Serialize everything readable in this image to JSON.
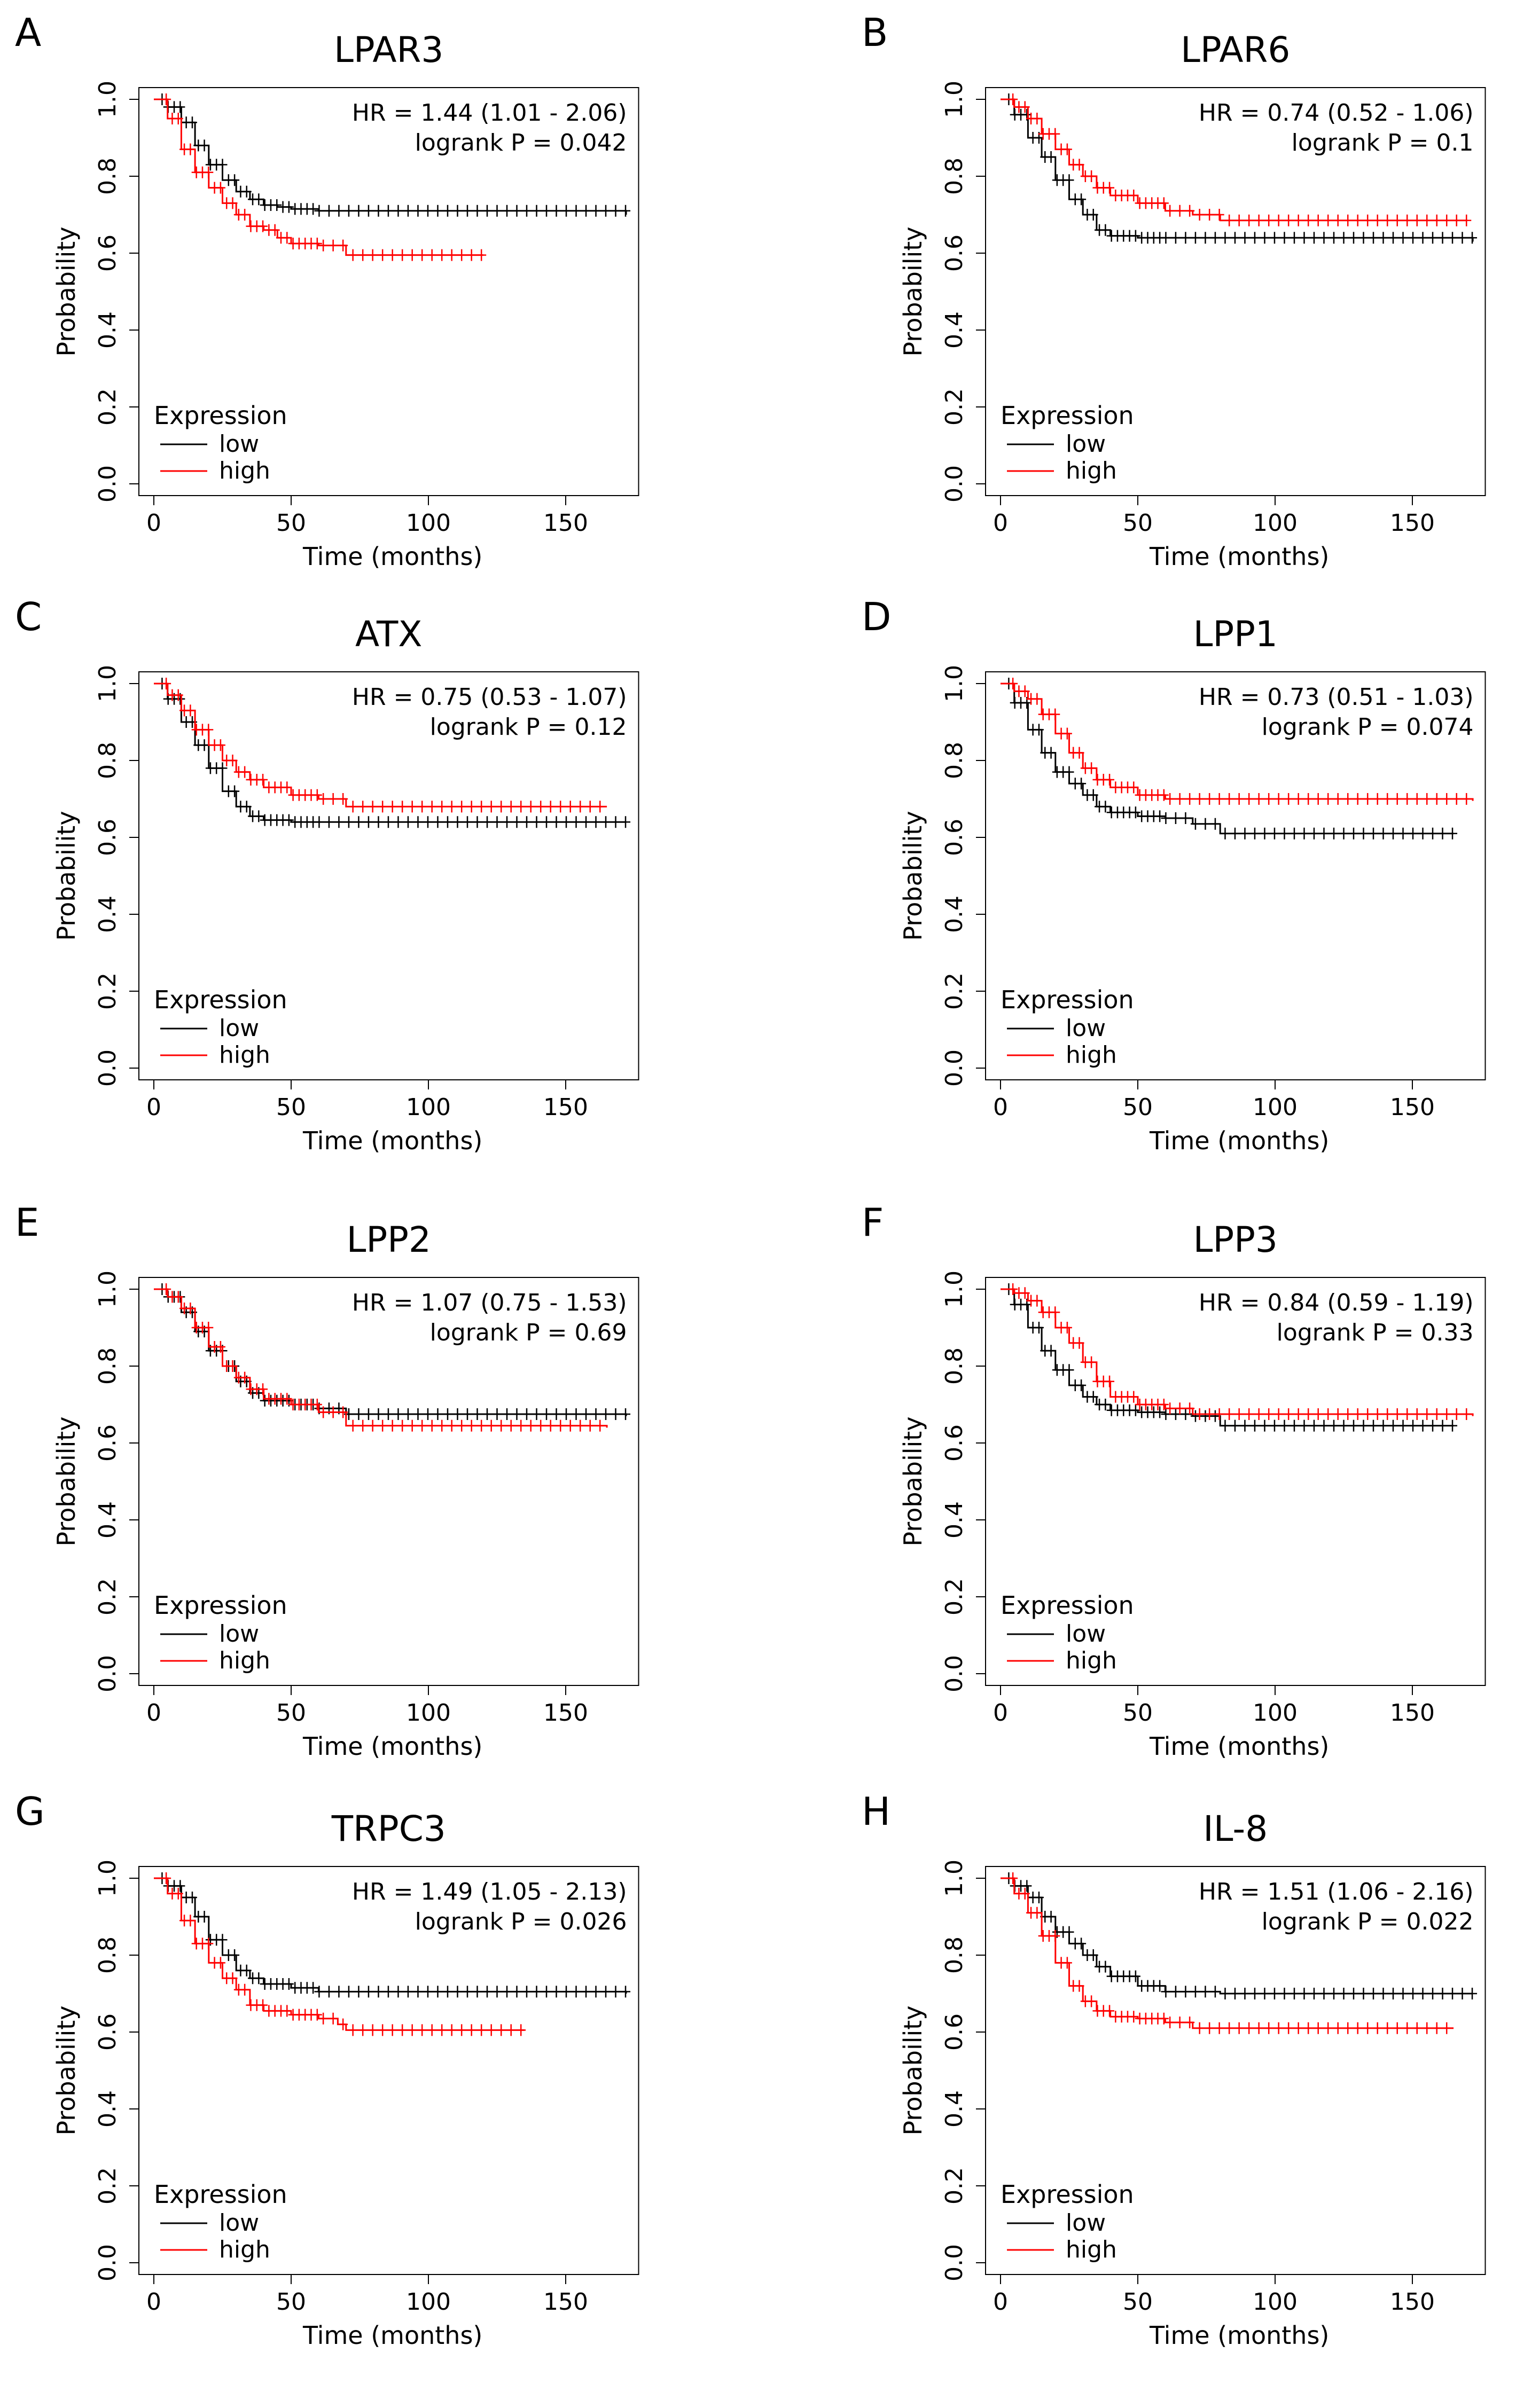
{
  "figure": {
    "colors": {
      "low": "#000000",
      "high": "#ff0000"
    }
  },
  "chart_data": [
    {
      "type": "line",
      "letter": "A",
      "title": "LPAR3",
      "xlabel": "Time (months)",
      "ylabel": "Probability",
      "xlim": [
        0,
        175
      ],
      "ylim": [
        0,
        1
      ],
      "xticks": [
        "0",
        "50",
        "100",
        "150"
      ],
      "yticks": [
        "0.0",
        "0.2",
        "0.4",
        "0.6",
        "0.8",
        "1.0"
      ],
      "hr_text": "HR = 1.44 (1.01 - 2.06)",
      "p_text": "logrank P = 0.042",
      "legend": {
        "title": "Expression",
        "position": "bottom-left",
        "items": [
          "low",
          "high"
        ]
      },
      "series": [
        {
          "name": "low",
          "color": "#000000",
          "x": [
            0,
            5,
            10,
            15,
            20,
            25,
            30,
            35,
            40,
            45,
            50,
            60,
            172
          ],
          "y": [
            1.0,
            0.98,
            0.94,
            0.88,
            0.83,
            0.79,
            0.76,
            0.74,
            0.725,
            0.72,
            0.715,
            0.71,
            0.7
          ]
        },
        {
          "name": "high",
          "color": "#ff0000",
          "x": [
            0,
            5,
            10,
            15,
            20,
            25,
            30,
            35,
            40,
            45,
            50,
            60,
            65,
            70,
            120
          ],
          "y": [
            1.0,
            0.95,
            0.87,
            0.81,
            0.77,
            0.73,
            0.7,
            0.67,
            0.66,
            0.64,
            0.625,
            0.62,
            0.62,
            0.595,
            0.595
          ]
        }
      ]
    },
    {
      "type": "line",
      "letter": "B",
      "title": "LPAR6",
      "xlabel": "Time (months)",
      "ylabel": "Probability",
      "xlim": [
        0,
        175
      ],
      "ylim": [
        0,
        1
      ],
      "xticks": [
        "0",
        "50",
        "100",
        "150"
      ],
      "yticks": [
        "0.0",
        "0.2",
        "0.4",
        "0.6",
        "0.8",
        "1.0"
      ],
      "hr_text": "HR = 0.74 (0.52 - 1.06)",
      "p_text": "logrank P = 0.1",
      "legend": {
        "title": "Expression",
        "position": "bottom-left",
        "items": [
          "low",
          "high"
        ]
      },
      "series": [
        {
          "name": "low",
          "color": "#000000",
          "x": [
            0,
            5,
            10,
            15,
            20,
            25,
            30,
            35,
            40,
            50,
            172
          ],
          "y": [
            1.0,
            0.96,
            0.9,
            0.85,
            0.79,
            0.74,
            0.7,
            0.66,
            0.645,
            0.64,
            0.63
          ]
        },
        {
          "name": "high",
          "color": "#ff0000",
          "x": [
            0,
            5,
            10,
            15,
            20,
            25,
            30,
            35,
            40,
            50,
            60,
            70,
            80,
            170
          ],
          "y": [
            1.0,
            0.98,
            0.95,
            0.91,
            0.87,
            0.83,
            0.8,
            0.77,
            0.75,
            0.73,
            0.71,
            0.7,
            0.685,
            0.685
          ]
        }
      ]
    },
    {
      "type": "line",
      "letter": "C",
      "title": "ATX",
      "xlabel": "Time (months)",
      "ylabel": "Probability",
      "xlim": [
        0,
        175
      ],
      "ylim": [
        0,
        1
      ],
      "xticks": [
        "0",
        "50",
        "100",
        "150"
      ],
      "yticks": [
        "0.0",
        "0.2",
        "0.4",
        "0.6",
        "0.8",
        "1.0"
      ],
      "hr_text": "HR = 0.75 (0.53 - 1.07)",
      "p_text": "logrank P = 0.12",
      "legend": {
        "title": "Expression",
        "position": "bottom-left",
        "items": [
          "low",
          "high"
        ]
      },
      "series": [
        {
          "name": "low",
          "color": "#000000",
          "x": [
            0,
            5,
            10,
            15,
            20,
            25,
            30,
            35,
            40,
            50,
            172
          ],
          "y": [
            1.0,
            0.96,
            0.9,
            0.84,
            0.78,
            0.72,
            0.68,
            0.655,
            0.645,
            0.64,
            0.64
          ]
        },
        {
          "name": "high",
          "color": "#ff0000",
          "x": [
            0,
            5,
            10,
            15,
            20,
            25,
            30,
            35,
            40,
            50,
            60,
            70,
            165
          ],
          "y": [
            1.0,
            0.97,
            0.93,
            0.88,
            0.84,
            0.8,
            0.77,
            0.75,
            0.73,
            0.71,
            0.7,
            0.68,
            0.68
          ]
        }
      ]
    },
    {
      "type": "line",
      "letter": "D",
      "title": "LPP1",
      "xlabel": "Time (months)",
      "ylabel": "Probability",
      "xlim": [
        0,
        175
      ],
      "ylim": [
        0,
        1
      ],
      "xticks": [
        "0",
        "50",
        "100",
        "150"
      ],
      "yticks": [
        "0.0",
        "0.2",
        "0.4",
        "0.6",
        "0.8",
        "1.0"
      ],
      "hr_text": "HR = 0.73 (0.51 - 1.03)",
      "p_text": "logrank P = 0.074",
      "legend": {
        "title": "Expression",
        "position": "bottom-left",
        "items": [
          "low",
          "high"
        ]
      },
      "series": [
        {
          "name": "low",
          "color": "#000000",
          "x": [
            0,
            5,
            10,
            15,
            20,
            25,
            30,
            35,
            40,
            50,
            60,
            70,
            80,
            165
          ],
          "y": [
            1.0,
            0.95,
            0.88,
            0.82,
            0.77,
            0.74,
            0.71,
            0.68,
            0.665,
            0.655,
            0.65,
            0.635,
            0.61,
            0.61
          ]
        },
        {
          "name": "high",
          "color": "#ff0000",
          "x": [
            0,
            5,
            10,
            15,
            20,
            25,
            30,
            35,
            40,
            50,
            60,
            172
          ],
          "y": [
            1.0,
            0.98,
            0.96,
            0.92,
            0.87,
            0.82,
            0.78,
            0.75,
            0.73,
            0.71,
            0.7,
            0.695
          ]
        }
      ]
    },
    {
      "type": "line",
      "letter": "E",
      "title": "LPP2",
      "xlabel": "Time (months)",
      "ylabel": "Probability",
      "xlim": [
        0,
        175
      ],
      "ylim": [
        0,
        1
      ],
      "xticks": [
        "0",
        "50",
        "100",
        "150"
      ],
      "yticks": [
        "0.0",
        "0.2",
        "0.4",
        "0.6",
        "0.8",
        "1.0"
      ],
      "hr_text": "HR = 1.07 (0.75 - 1.53)",
      "p_text": "logrank P = 0.69",
      "legend": {
        "title": "Expression",
        "position": "bottom-left",
        "items": [
          "low",
          "high"
        ]
      },
      "series": [
        {
          "name": "low",
          "color": "#000000",
          "x": [
            0,
            5,
            10,
            15,
            20,
            25,
            30,
            35,
            40,
            50,
            60,
            70,
            172
          ],
          "y": [
            1.0,
            0.98,
            0.94,
            0.89,
            0.84,
            0.8,
            0.76,
            0.73,
            0.71,
            0.7,
            0.69,
            0.675,
            0.67
          ]
        },
        {
          "name": "high",
          "color": "#ff0000",
          "x": [
            0,
            5,
            10,
            15,
            20,
            25,
            30,
            35,
            40,
            50,
            60,
            70,
            165
          ],
          "y": [
            1.0,
            0.98,
            0.95,
            0.9,
            0.85,
            0.8,
            0.77,
            0.74,
            0.715,
            0.7,
            0.68,
            0.645,
            0.64
          ]
        }
      ]
    },
    {
      "type": "line",
      "letter": "F",
      "title": "LPP3",
      "xlabel": "Time (months)",
      "ylabel": "Probability",
      "xlim": [
        0,
        175
      ],
      "ylim": [
        0,
        1
      ],
      "xticks": [
        "0",
        "50",
        "100",
        "150"
      ],
      "yticks": [
        "0.0",
        "0.2",
        "0.4",
        "0.6",
        "0.8",
        "1.0"
      ],
      "hr_text": "HR = 0.84 (0.59 - 1.19)",
      "p_text": "logrank P = 0.33",
      "legend": {
        "title": "Expression",
        "position": "bottom-left",
        "items": [
          "low",
          "high"
        ]
      },
      "series": [
        {
          "name": "low",
          "color": "#000000",
          "x": [
            0,
            5,
            10,
            15,
            20,
            25,
            30,
            35,
            40,
            50,
            60,
            70,
            80,
            165
          ],
          "y": [
            1.0,
            0.96,
            0.9,
            0.84,
            0.79,
            0.75,
            0.72,
            0.7,
            0.685,
            0.68,
            0.675,
            0.67,
            0.645,
            0.645
          ]
        },
        {
          "name": "high",
          "color": "#ff0000",
          "x": [
            0,
            5,
            10,
            15,
            20,
            25,
            30,
            35,
            40,
            50,
            60,
            70,
            172
          ],
          "y": [
            1.0,
            0.99,
            0.97,
            0.94,
            0.9,
            0.86,
            0.81,
            0.76,
            0.72,
            0.7,
            0.69,
            0.675,
            0.67
          ]
        }
      ]
    },
    {
      "type": "line",
      "letter": "G",
      "title": "TRPC3",
      "xlabel": "Time (months)",
      "ylabel": "Probability",
      "xlim": [
        0,
        175
      ],
      "ylim": [
        0,
        1
      ],
      "xticks": [
        "0",
        "50",
        "100",
        "150"
      ],
      "yticks": [
        "0.0",
        "0.2",
        "0.4",
        "0.6",
        "0.8",
        "1.0"
      ],
      "hr_text": "HR = 1.49 (1.05 - 2.13)",
      "p_text": "logrank P = 0.026",
      "legend": {
        "title": "Expression",
        "position": "bottom-left",
        "items": [
          "low",
          "high"
        ]
      },
      "series": [
        {
          "name": "low",
          "color": "#000000",
          "x": [
            0,
            5,
            10,
            15,
            20,
            25,
            30,
            35,
            40,
            50,
            60,
            172
          ],
          "y": [
            1.0,
            0.98,
            0.95,
            0.9,
            0.84,
            0.8,
            0.76,
            0.74,
            0.725,
            0.715,
            0.705,
            0.7
          ]
        },
        {
          "name": "high",
          "color": "#ff0000",
          "x": [
            0,
            5,
            10,
            15,
            20,
            25,
            30,
            35,
            40,
            50,
            60,
            67,
            70,
            135
          ],
          "y": [
            1.0,
            0.96,
            0.89,
            0.83,
            0.78,
            0.74,
            0.71,
            0.67,
            0.655,
            0.645,
            0.635,
            0.62,
            0.605,
            0.605
          ]
        }
      ]
    },
    {
      "type": "line",
      "letter": "H",
      "title": "IL-8",
      "xlabel": "Time (months)",
      "ylabel": "Probability",
      "xlim": [
        0,
        175
      ],
      "ylim": [
        0,
        1
      ],
      "xticks": [
        "0",
        "50",
        "100",
        "150"
      ],
      "yticks": [
        "0.0",
        "0.2",
        "0.4",
        "0.6",
        "0.8",
        "1.0"
      ],
      "hr_text": "HR = 1.51 (1.06 - 2.16)",
      "p_text": "logrank P = 0.022",
      "legend": {
        "title": "Expression",
        "position": "bottom-left",
        "items": [
          "low",
          "high"
        ]
      },
      "series": [
        {
          "name": "low",
          "color": "#000000",
          "x": [
            0,
            5,
            10,
            15,
            20,
            25,
            30,
            35,
            40,
            50,
            60,
            80,
            172
          ],
          "y": [
            1.0,
            0.98,
            0.95,
            0.9,
            0.86,
            0.83,
            0.8,
            0.77,
            0.745,
            0.72,
            0.705,
            0.7,
            0.7
          ]
        },
        {
          "name": "high",
          "color": "#ff0000",
          "x": [
            0,
            5,
            10,
            15,
            20,
            25,
            30,
            35,
            40,
            50,
            60,
            70,
            165
          ],
          "y": [
            1.0,
            0.96,
            0.91,
            0.85,
            0.78,
            0.72,
            0.68,
            0.655,
            0.64,
            0.635,
            0.625,
            0.61,
            0.61
          ]
        }
      ]
    }
  ]
}
